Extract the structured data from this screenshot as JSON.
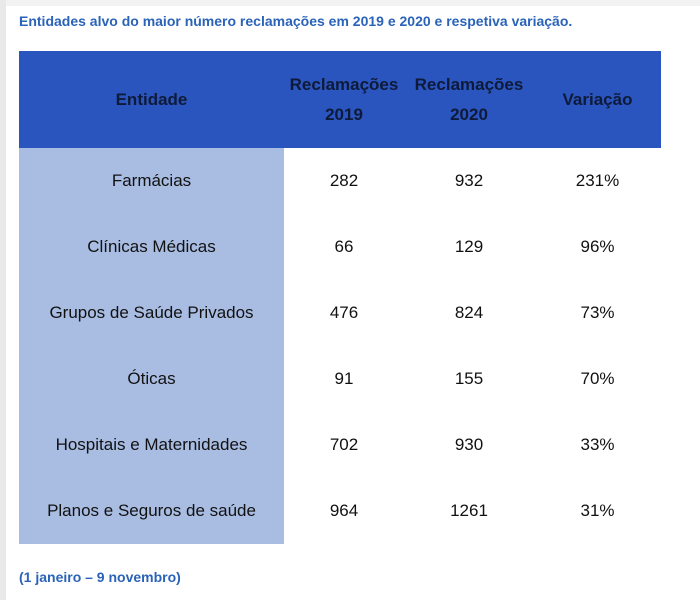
{
  "caption": "Entidades alvo do maior número reclamações em 2019 e 2020 e respetiva variação.",
  "footnote": "(1 janeiro – 9 novembro)",
  "table": {
    "headers": {
      "entity": "Entidade",
      "r2019_line1": "Reclamações",
      "r2019_line2": "2019",
      "r2020_line1": "Reclamações",
      "r2020_line2": "2020",
      "variation": "Variação"
    },
    "rows": [
      {
        "entity": "Farmácias",
        "r2019": "282",
        "r2020": "932",
        "variation": "231%"
      },
      {
        "entity": "Clínicas Médicas",
        "r2019": "66",
        "r2020": "129",
        "variation": "96%"
      },
      {
        "entity": "Grupos de Saúde Privados",
        "r2019": "476",
        "r2020": "824",
        "variation": "73%"
      },
      {
        "entity": "Óticas",
        "r2019": "91",
        "r2020": "155",
        "variation": "70%"
      },
      {
        "entity": "Hospitais e Maternidades",
        "r2019": "702",
        "r2020": "930",
        "variation": "33%"
      },
      {
        "entity": "Planos e Seguros de saúde",
        "r2019": "964",
        "r2020": "1261",
        "variation": "31%"
      }
    ]
  },
  "colors": {
    "header_bg": "#2b55be",
    "entity_col_bg": "#a9bde3",
    "caption_text": "#2a63b8"
  }
}
